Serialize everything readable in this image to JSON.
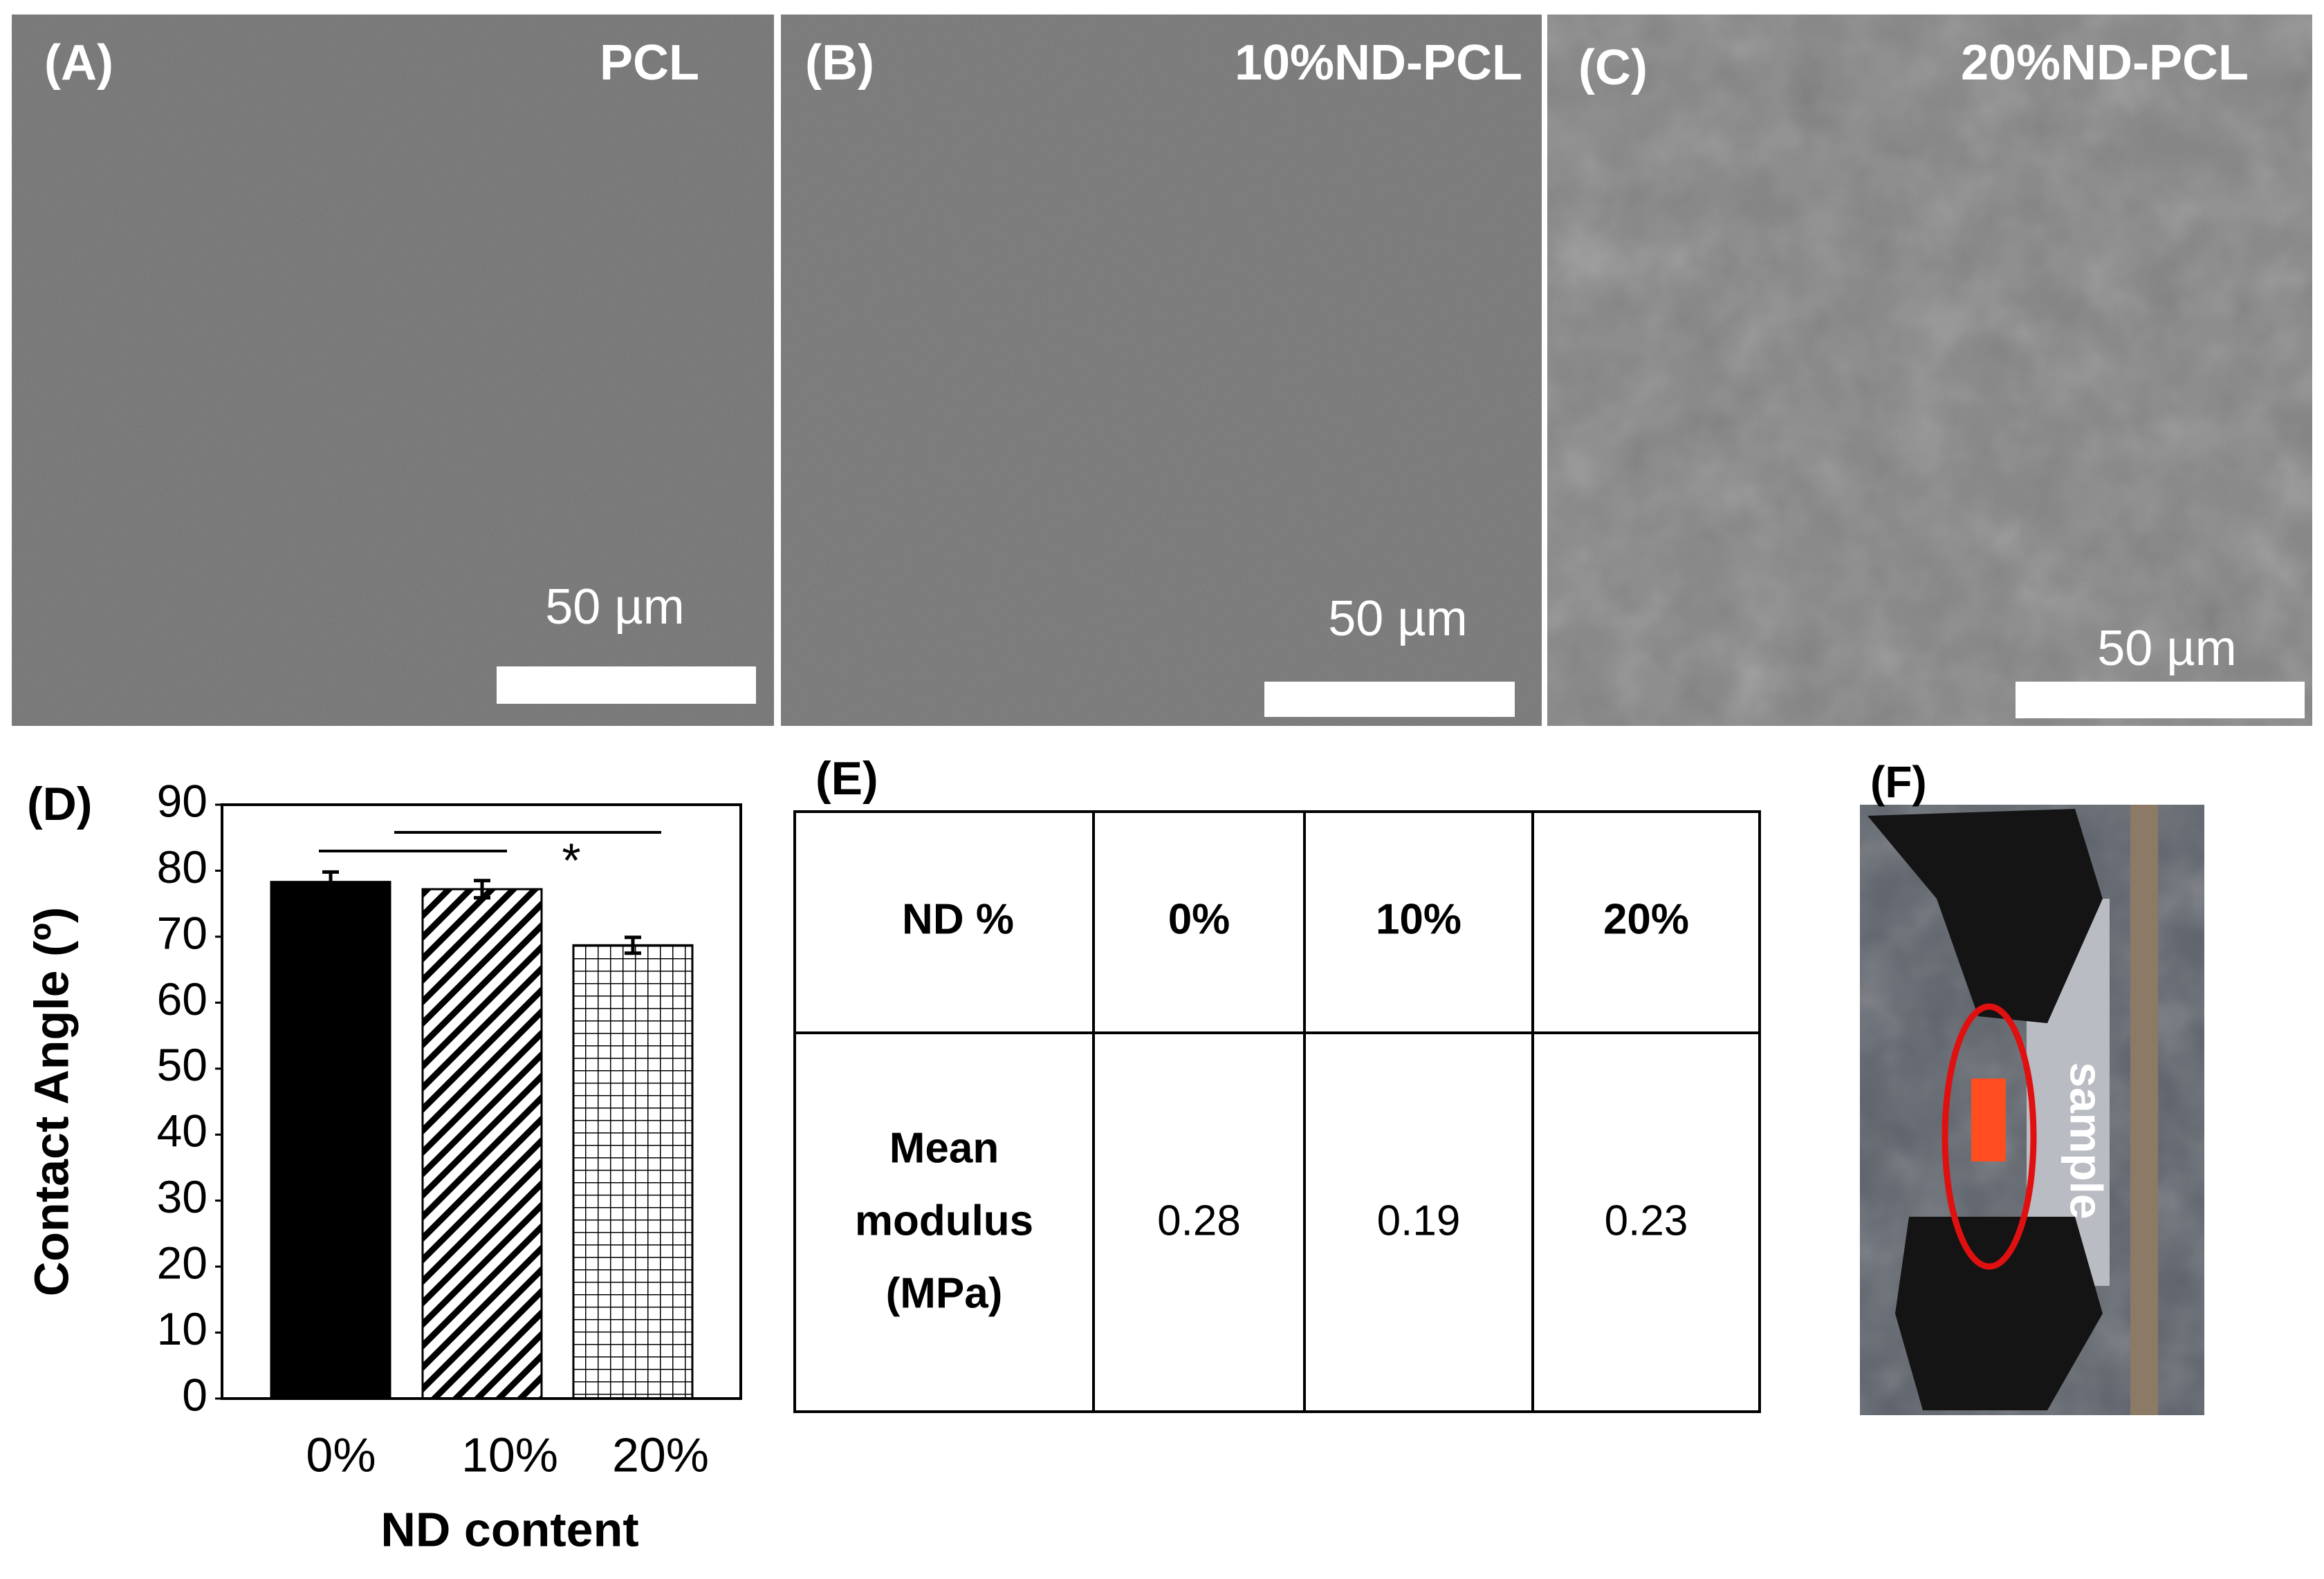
{
  "panels": [
    {
      "label": "(A)",
      "title": "PCL",
      "scale": "50 µm"
    },
    {
      "label": "(B)",
      "title": "10%ND-PCL",
      "scale": "50 µm"
    },
    {
      "label": "(C)",
      "title": "20%ND-PCL",
      "scale": "50 µm"
    }
  ],
  "chart_data": {
    "type": "bar",
    "label": "(D)",
    "ylabel": "Contact Angle (º)",
    "xlabel": "ND content",
    "categories": [
      "0%",
      "10%",
      "20%"
    ],
    "values": [
      78.3,
      77.2,
      68.7
    ],
    "errors": [
      1.5,
      1.3,
      1.2
    ],
    "patterns": [
      "solid",
      "diagonal",
      "grid"
    ],
    "color": "#000000",
    "ylim": [
      0,
      90
    ],
    "yticks": [
      0,
      10,
      20,
      30,
      40,
      50,
      60,
      70,
      80,
      90
    ],
    "annotation": "*"
  },
  "table": {
    "label": "(E)",
    "rows": [
      [
        "ND %",
        "0%",
        "10%",
        "20%"
      ],
      [
        [
          "Mean",
          "modulus",
          "(MPa)"
        ],
        "0.28",
        "0.19",
        "0.23"
      ]
    ]
  },
  "photo": {
    "label": "(F)",
    "annotation": "sample"
  }
}
